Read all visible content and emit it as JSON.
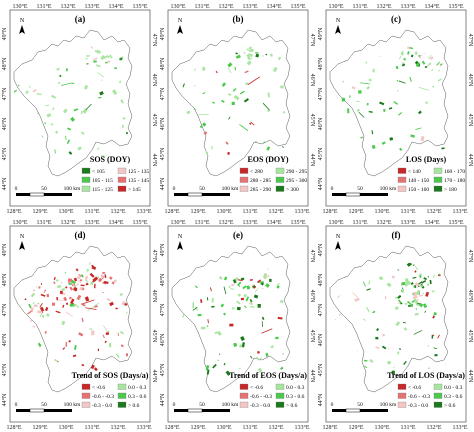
{
  "colors": {
    "frame": "#333333",
    "region_fill": "#ffffff",
    "region_stroke": "#555555",
    "map_bg": "#ffffff"
  },
  "icons": {
    "north_arrow": "north-arrow-icon",
    "scale_bar": "scale-bar-icon"
  },
  "axes": {
    "top": [
      "130°E",
      "131°E",
      "132°E",
      "133°E",
      "134°E",
      "135°E"
    ],
    "bottom": [
      "128°E",
      "129°E",
      "130°E",
      "131°E",
      "132°E",
      "133°E"
    ],
    "left": [
      "49°N",
      "48°N",
      "47°N",
      "46°N",
      "45°N",
      "44°N"
    ],
    "right": [
      "47°N",
      "46°N",
      "45°N",
      "44°N"
    ]
  },
  "scale_bar": {
    "labels": [
      "0",
      "50",
      "100 km"
    ]
  },
  "north_label": "N",
  "panels": [
    {
      "letter": "(a)",
      "title": "SOS (DOY)",
      "pattern": "sos",
      "legend": [
        {
          "label": "< 105",
          "color": "#1a7a1a"
        },
        {
          "label": "125 - 135",
          "color": "#f4c6c6"
        },
        {
          "label": "105 - 115",
          "color": "#4cc94c"
        },
        {
          "label": "135 - 145",
          "color": "#e57373"
        },
        {
          "label": "115 - 125",
          "color": "#a8e6a0"
        },
        {
          "label": "> 145",
          "color": "#c62828"
        }
      ]
    },
    {
      "letter": "(b)",
      "title": "EOS (DOY)",
      "pattern": "eos",
      "legend": [
        {
          "label": "< 280",
          "color": "#c62828"
        },
        {
          "label": "290 - 295",
          "color": "#a8e6a0"
        },
        {
          "label": "280 - 285",
          "color": "#e57373"
        },
        {
          "label": "295 - 300",
          "color": "#4cc94c"
        },
        {
          "label": "285 - 290",
          "color": "#f4c6c6"
        },
        {
          "label": "> 300",
          "color": "#1a7a1a"
        }
      ]
    },
    {
      "letter": "(c)",
      "title": "LOS (Days)",
      "pattern": "los",
      "legend": [
        {
          "label": "< 140",
          "color": "#c62828"
        },
        {
          "label": "160 - 170",
          "color": "#a8e6a0"
        },
        {
          "label": "140 - 150",
          "color": "#e57373"
        },
        {
          "label": "170 - 180",
          "color": "#4cc94c"
        },
        {
          "label": "150 - 160",
          "color": "#f4c6c6"
        },
        {
          "label": "> 180",
          "color": "#1a7a1a"
        }
      ]
    },
    {
      "letter": "(d)",
      "title": "Trend of SOS (Days/a)",
      "pattern": "tsos",
      "legend": [
        {
          "label": "< -0.6",
          "color": "#c62828"
        },
        {
          "label": "0.0 - 0.3",
          "color": "#a8e6a0"
        },
        {
          "label": "-0.6 - -0.3",
          "color": "#e57373"
        },
        {
          "label": "0.3 - 0.6",
          "color": "#4cc94c"
        },
        {
          "label": "-0.3 - 0.0",
          "color": "#f4c6c6"
        },
        {
          "label": "> 0.6",
          "color": "#1a7a1a"
        }
      ]
    },
    {
      "letter": "(e)",
      "title": "Trend of EOS (Days/a)",
      "pattern": "teos",
      "legend": [
        {
          "label": "< -0.6",
          "color": "#c62828"
        },
        {
          "label": "0.0 - 0.3",
          "color": "#a8e6a0"
        },
        {
          "label": "-0.6 - -0.3",
          "color": "#e57373"
        },
        {
          "label": "0.3 - 0.6",
          "color": "#4cc94c"
        },
        {
          "label": "-0.3 - 0.0",
          "color": "#f4c6c6"
        },
        {
          "label": "> 0.6",
          "color": "#1a7a1a"
        }
      ]
    },
    {
      "letter": "(f)",
      "title": "Trend of LOS (Days/a)",
      "pattern": "tlos",
      "legend": [
        {
          "label": "< -0.6",
          "color": "#c62828"
        },
        {
          "label": "0.0 - 0.3",
          "color": "#a8e6a0"
        },
        {
          "label": "-0.6 - -0.3",
          "color": "#e57373"
        },
        {
          "label": "0.3 - 0.6",
          "color": "#4cc94c"
        },
        {
          "label": "-0.3 - 0.0",
          "color": "#f4c6c6"
        },
        {
          "label": "> 0.6",
          "color": "#1a7a1a"
        }
      ]
    }
  ]
}
